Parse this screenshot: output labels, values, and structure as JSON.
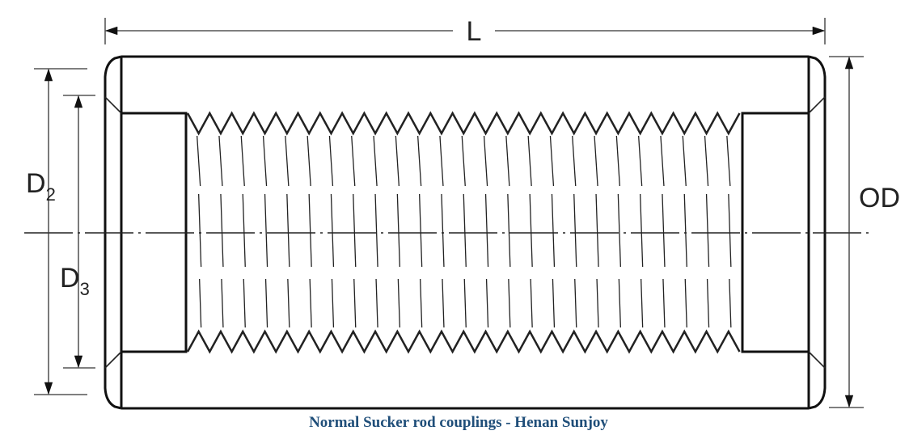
{
  "dimensions": {
    "length": {
      "text": "L"
    },
    "outer_diameter": {
      "text": "OD"
    },
    "d2": {
      "main": "D",
      "sub": "2"
    },
    "d3": {
      "main": "D",
      "sub": "3"
    }
  },
  "caption": "Normal Sucker rod couplings - Henan Sunjoy"
}
